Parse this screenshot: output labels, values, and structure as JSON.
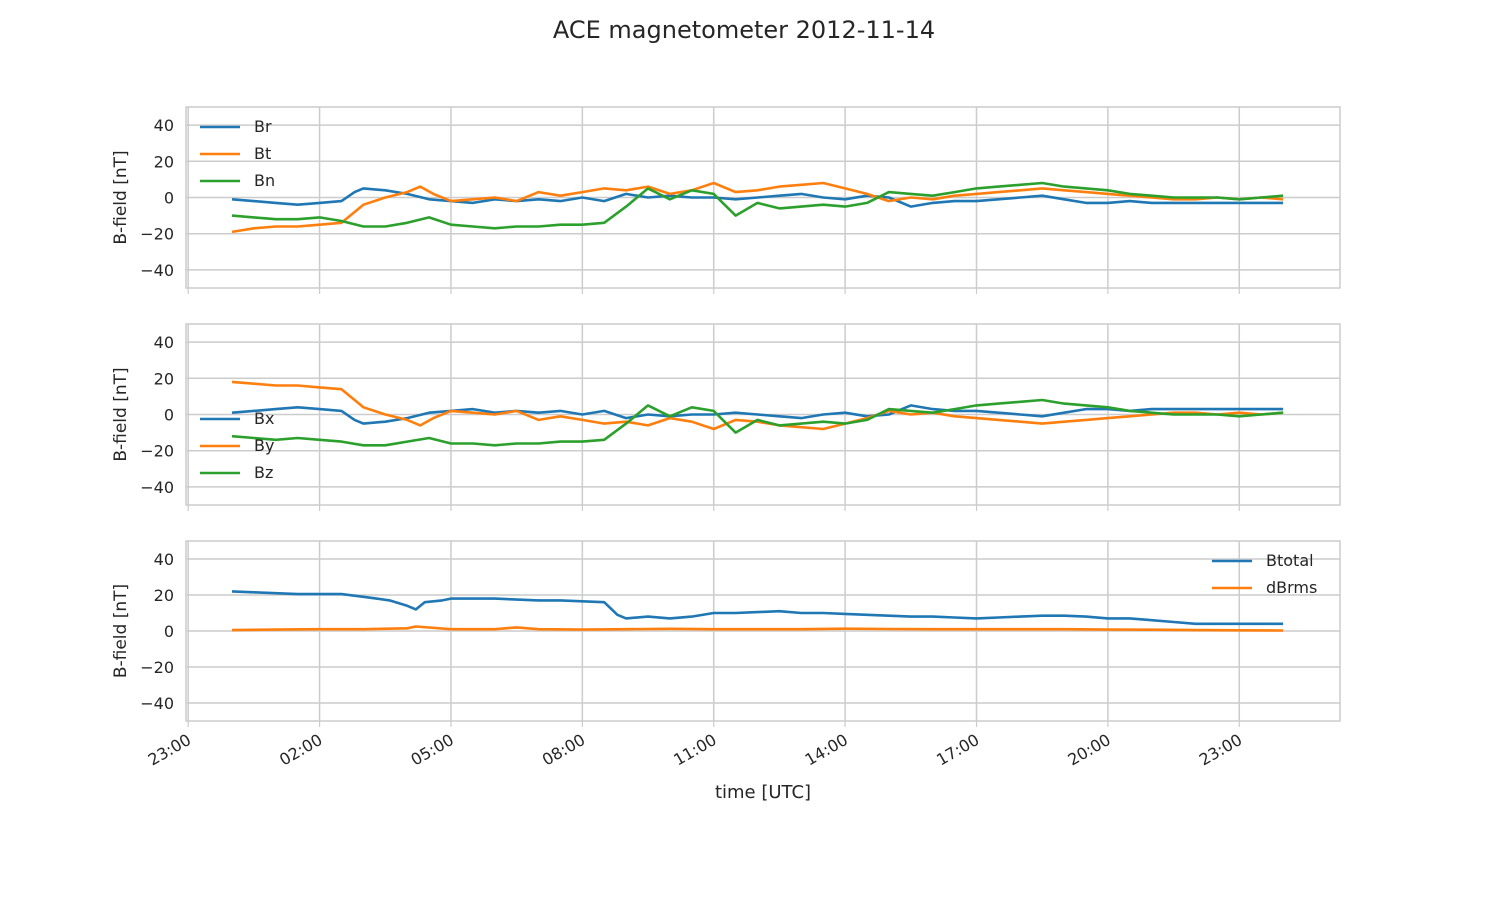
{
  "figure": {
    "title": "ACE magnetometer 2012-11-14"
  },
  "chart_data": [
    {
      "type": "line",
      "panel": "rtn",
      "ylabel": "B-field [nT]",
      "xlabel": "",
      "ylim": [
        -50,
        50
      ],
      "yticks": [
        -40,
        -20,
        0,
        20,
        40
      ],
      "xlim_hours": [
        -1.05,
        25.3
      ],
      "grid": true,
      "legend": "top-left",
      "series": [
        {
          "name": "Br",
          "color": "#1f77b4",
          "x": [
            0,
            1,
            1.5,
            2,
            2.5,
            2.8,
            3,
            3.5,
            4,
            4.5,
            5,
            5.5,
            6,
            6.5,
            7,
            7.5,
            8,
            8.5,
            9,
            9.5,
            10,
            10.5,
            11,
            11.5,
            12,
            12.5,
            13,
            13.5,
            14,
            14.5,
            15,
            15.5,
            16,
            16.5,
            17,
            17.5,
            18,
            18.5,
            19,
            19.5,
            20,
            20.5,
            21,
            21.5,
            22,
            22.5,
            23,
            23.5,
            24
          ],
          "y": [
            -1,
            -3,
            -4,
            -3,
            -2,
            3,
            5,
            4,
            2,
            -1,
            -2,
            -3,
            -1,
            -2,
            -1,
            -2,
            0,
            -2,
            2,
            0,
            1,
            0,
            0,
            -1,
            0,
            1,
            2,
            0,
            -1,
            1,
            0,
            -5,
            -3,
            -2,
            -2,
            -1,
            0,
            1,
            -1,
            -3,
            -3,
            -2,
            -3,
            -3,
            -3,
            -3,
            -3,
            -3,
            -3
          ]
        },
        {
          "name": "Bt",
          "color": "#ff7f0e",
          "x": [
            0,
            0.5,
            1,
            1.5,
            2,
            2.5,
            2.8,
            3,
            3.5,
            4,
            4.3,
            4.6,
            5,
            5.5,
            6,
            6.5,
            7,
            7.5,
            8,
            8.5,
            9,
            9.5,
            10,
            10.5,
            11,
            11.5,
            12,
            12.5,
            13,
            13.5,
            14,
            14.5,
            15,
            15.5,
            16,
            16.5,
            17,
            17.5,
            18,
            18.5,
            19,
            19.5,
            20,
            20.5,
            21,
            21.5,
            22,
            22.5,
            23,
            23.5,
            24
          ],
          "y": [
            -19,
            -17,
            -16,
            -16,
            -15,
            -14,
            -8,
            -4,
            0,
            3,
            6,
            2,
            -2,
            -1,
            0,
            -2,
            3,
            1,
            3,
            5,
            4,
            6,
            2,
            4,
            8,
            3,
            4,
            6,
            7,
            8,
            5,
            2,
            -2,
            0,
            -1,
            1,
            2,
            3,
            4,
            5,
            4,
            3,
            2,
            1,
            0,
            -1,
            -1,
            0,
            -1,
            0,
            -1
          ]
        },
        {
          "name": "Bn",
          "color": "#2ca02c",
          "x": [
            0,
            0.5,
            1,
            1.5,
            2,
            2.5,
            3,
            3.5,
            4,
            4.5,
            5,
            5.5,
            6,
            6.5,
            7,
            7.5,
            8,
            8.5,
            9,
            9.5,
            10,
            10.5,
            11,
            11.5,
            12,
            12.5,
            13,
            13.5,
            14,
            14.5,
            15,
            15.5,
            16,
            16.5,
            17,
            17.5,
            18,
            18.5,
            19,
            19.5,
            20,
            20.5,
            21,
            21.5,
            22,
            22.5,
            23,
            23.5,
            24
          ],
          "y": [
            -10,
            -11,
            -12,
            -12,
            -11,
            -13,
            -16,
            -16,
            -14,
            -11,
            -15,
            -16,
            -17,
            -16,
            -16,
            -15,
            -15,
            -14,
            -5,
            5,
            -1,
            4,
            2,
            -10,
            -3,
            -6,
            -5,
            -4,
            -5,
            -3,
            3,
            2,
            1,
            3,
            5,
            6,
            7,
            8,
            6,
            5,
            4,
            2,
            1,
            0,
            0,
            0,
            -1,
            0,
            1
          ]
        }
      ]
    },
    {
      "type": "line",
      "panel": "xyz",
      "ylabel": "B-field [nT]",
      "xlabel": "",
      "ylim": [
        -50,
        50
      ],
      "yticks": [
        -40,
        -20,
        0,
        20,
        40
      ],
      "xlim_hours": [
        -1.05,
        25.3
      ],
      "grid": true,
      "legend": "center-left",
      "series": [
        {
          "name": "Bx",
          "color": "#1f77b4",
          "x": [
            0,
            1,
            1.5,
            2,
            2.5,
            2.8,
            3,
            3.5,
            4,
            4.5,
            5,
            5.5,
            6,
            6.5,
            7,
            7.5,
            8,
            8.5,
            9,
            9.5,
            10,
            10.5,
            11,
            11.5,
            12,
            12.5,
            13,
            13.5,
            14,
            14.5,
            15,
            15.5,
            16,
            16.5,
            17,
            17.5,
            18,
            18.5,
            19,
            19.5,
            20,
            20.5,
            21,
            21.5,
            22,
            22.5,
            23,
            23.5,
            24
          ],
          "y": [
            1,
            3,
            4,
            3,
            2,
            -3,
            -5,
            -4,
            -2,
            1,
            2,
            3,
            1,
            2,
            1,
            2,
            0,
            2,
            -2,
            0,
            -1,
            0,
            0,
            1,
            0,
            -1,
            -2,
            0,
            1,
            -1,
            0,
            5,
            3,
            2,
            2,
            1,
            0,
            -1,
            1,
            3,
            3,
            2,
            3,
            3,
            3,
            3,
            3,
            3,
            3
          ]
        },
        {
          "name": "By",
          "color": "#ff7f0e",
          "x": [
            0,
            0.5,
            1,
            1.5,
            2,
            2.5,
            2.8,
            3,
            3.5,
            4,
            4.3,
            4.6,
            5,
            5.5,
            6,
            6.5,
            7,
            7.5,
            8,
            8.5,
            9,
            9.5,
            10,
            10.5,
            11,
            11.5,
            12,
            12.5,
            13,
            13.5,
            14,
            14.5,
            15,
            15.5,
            16,
            16.5,
            17,
            17.5,
            18,
            18.5,
            19,
            19.5,
            20,
            20.5,
            21,
            21.5,
            22,
            22.5,
            23,
            23.5,
            24
          ],
          "y": [
            18,
            17,
            16,
            16,
            15,
            14,
            8,
            4,
            0,
            -3,
            -6,
            -2,
            2,
            1,
            0,
            2,
            -3,
            -1,
            -3,
            -5,
            -4,
            -6,
            -2,
            -4,
            -8,
            -3,
            -4,
            -6,
            -7,
            -8,
            -5,
            -2,
            2,
            0,
            1,
            -1,
            -2,
            -3,
            -4,
            -5,
            -4,
            -3,
            -2,
            -1,
            0,
            1,
            1,
            0,
            1,
            0,
            1
          ]
        },
        {
          "name": "Bz",
          "color": "#2ca02c",
          "x": [
            0,
            0.5,
            1,
            1.5,
            2,
            2.5,
            3,
            3.5,
            4,
            4.5,
            5,
            5.5,
            6,
            6.5,
            7,
            7.5,
            8,
            8.5,
            9,
            9.5,
            10,
            10.5,
            11,
            11.5,
            12,
            12.5,
            13,
            13.5,
            14,
            14.5,
            15,
            15.5,
            16,
            16.5,
            17,
            17.5,
            18,
            18.5,
            19,
            19.5,
            20,
            20.5,
            21,
            21.5,
            22,
            22.5,
            23,
            23.5,
            24
          ],
          "y": [
            -12,
            -13,
            -14,
            -13,
            -14,
            -15,
            -17,
            -17,
            -15,
            -13,
            -16,
            -16,
            -17,
            -16,
            -16,
            -15,
            -15,
            -14,
            -5,
            5,
            -1,
            4,
            2,
            -10,
            -3,
            -6,
            -5,
            -4,
            -5,
            -3,
            3,
            2,
            1,
            3,
            5,
            6,
            7,
            8,
            6,
            5,
            4,
            2,
            1,
            0,
            0,
            0,
            -1,
            0,
            1
          ]
        }
      ]
    },
    {
      "type": "line",
      "panel": "magnitude",
      "ylabel": "B-field [nT]",
      "xlabel": "time [UTC]",
      "ylim": [
        -50,
        50
      ],
      "yticks": [
        -40,
        -20,
        0,
        20,
        40
      ],
      "xlim_hours": [
        -1.05,
        25.3
      ],
      "xticks_hours": [
        -1,
        2,
        5,
        8,
        11,
        14,
        17,
        20,
        23
      ],
      "xticklabels": [
        "23:00",
        "02:00",
        "05:00",
        "08:00",
        "11:00",
        "14:00",
        "17:00",
        "20:00",
        "23:00"
      ],
      "grid": true,
      "legend": "top-right",
      "series": [
        {
          "name": "Btotal",
          "color": "#1f77b4",
          "x": [
            0,
            0.5,
            1,
            1.5,
            2,
            2.5,
            3,
            3.3,
            3.6,
            4,
            4.2,
            4.4,
            4.8,
            5,
            6,
            7,
            7.5,
            8,
            8.5,
            8.8,
            9,
            9.5,
            10,
            10.5,
            11,
            11.5,
            12,
            12.5,
            13,
            13.5,
            14,
            14.5,
            15,
            15.5,
            16,
            16.5,
            17,
            17.5,
            18,
            18.5,
            19,
            19.5,
            20,
            20.5,
            21,
            21.5,
            22,
            22.5,
            23,
            23.5,
            24
          ],
          "y": [
            22,
            21.5,
            21,
            20.5,
            20.5,
            20.5,
            19,
            18,
            17,
            14,
            12,
            16,
            17,
            18,
            18,
            17,
            17,
            16.5,
            16,
            9,
            7,
            8,
            7,
            8,
            10,
            10,
            10.5,
            11,
            10,
            10,
            9.5,
            9,
            8.5,
            8,
            8,
            7.5,
            7,
            7.5,
            8,
            8.5,
            8.5,
            8,
            7,
            7,
            6,
            5,
            4,
            4,
            4,
            4,
            4
          ]
        },
        {
          "name": "dBrms",
          "color": "#ff7f0e",
          "x": [
            0,
            1,
            2,
            3,
            4,
            4.2,
            5,
            6,
            6.5,
            7,
            8,
            9,
            10,
            11,
            12,
            13,
            14,
            15,
            16,
            17,
            18,
            19,
            20,
            21,
            22,
            23,
            24
          ],
          "y": [
            0.5,
            0.8,
            1,
            1,
            1.5,
            2.5,
            1,
            1,
            2,
            1,
            0.8,
            1,
            1.2,
            1,
            1,
            1,
            1.3,
            1.1,
            1,
            1,
            1,
            1,
            0.8,
            0.7,
            0.5,
            0.4,
            0.3
          ]
        }
      ]
    }
  ]
}
